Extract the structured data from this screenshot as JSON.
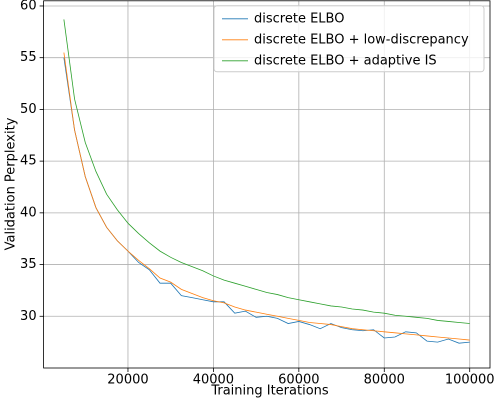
{
  "chart_data": {
    "type": "line",
    "x_label": "Training Iterations",
    "y_label": "Validation Perplexity",
    "x": [
      5000,
      7500,
      10000,
      12500,
      15000,
      17500,
      20000,
      22500,
      25000,
      27500,
      30000,
      32500,
      35000,
      37500,
      40000,
      42500,
      45000,
      47500,
      50000,
      52500,
      55000,
      57500,
      60000,
      62500,
      65000,
      67500,
      70000,
      72500,
      75000,
      77500,
      80000,
      82500,
      85000,
      87500,
      90000,
      92500,
      95000,
      97500,
      100000
    ],
    "series": [
      {
        "name": "discrete ELBO",
        "color": "#1f77b4",
        "values": [
          55,
          48,
          43.5,
          40.5,
          38.6,
          37.3,
          36.3,
          35.2,
          34.5,
          33.2,
          33.2,
          32,
          31.8,
          31.6,
          31.4,
          31.4,
          30.3,
          30.5,
          29.9,
          30.0,
          29.8,
          29.3,
          29.5,
          29.2,
          28.8,
          29.3,
          28.9,
          28.7,
          28.6,
          28.7,
          27.9,
          28.0,
          28.5,
          28.4,
          27.6,
          27.5,
          27.8,
          27.4,
          27.5
        ]
      },
      {
        "name": "discrete ELBO + low-discrepancy",
        "color": "#ff7f0e",
        "values": [
          55.5,
          48,
          43.5,
          40.5,
          38.6,
          37.3,
          36.3,
          35.4,
          34.6,
          33.7,
          33.3,
          32.6,
          32.2,
          31.8,
          31.5,
          31.3,
          30.9,
          30.6,
          30.4,
          30.2,
          30.0,
          29.8,
          29.6,
          29.4,
          29.3,
          29.2,
          29.0,
          28.8,
          28.7,
          28.6,
          28.5,
          28.4,
          28.3,
          28.2,
          28.1,
          28.0,
          27.9,
          27.8,
          27.7
        ]
      },
      {
        "name": "discrete ELBO + adaptive IS",
        "color": "#2ca02c",
        "values": [
          58.7,
          51,
          46.8,
          44,
          41.8,
          40.3,
          39,
          38,
          37.1,
          36.3,
          35.7,
          35.2,
          34.8,
          34.4,
          33.9,
          33.5,
          33.2,
          32.9,
          32.6,
          32.3,
          32.1,
          31.8,
          31.6,
          31.4,
          31.2,
          31.0,
          30.9,
          30.7,
          30.6,
          30.4,
          30.3,
          30.1,
          30.0,
          29.9,
          29.8,
          29.6,
          29.5,
          29.4,
          29.3
        ]
      }
    ],
    "xlim": [
      250,
      104750
    ],
    "ylim": [
      25,
      60.5
    ],
    "xticks": [
      20000,
      40000,
      60000,
      80000,
      100000
    ],
    "yticks": [
      30,
      35,
      40,
      45,
      50,
      55,
      60
    ],
    "grid": true,
    "legend": "upper right"
  }
}
